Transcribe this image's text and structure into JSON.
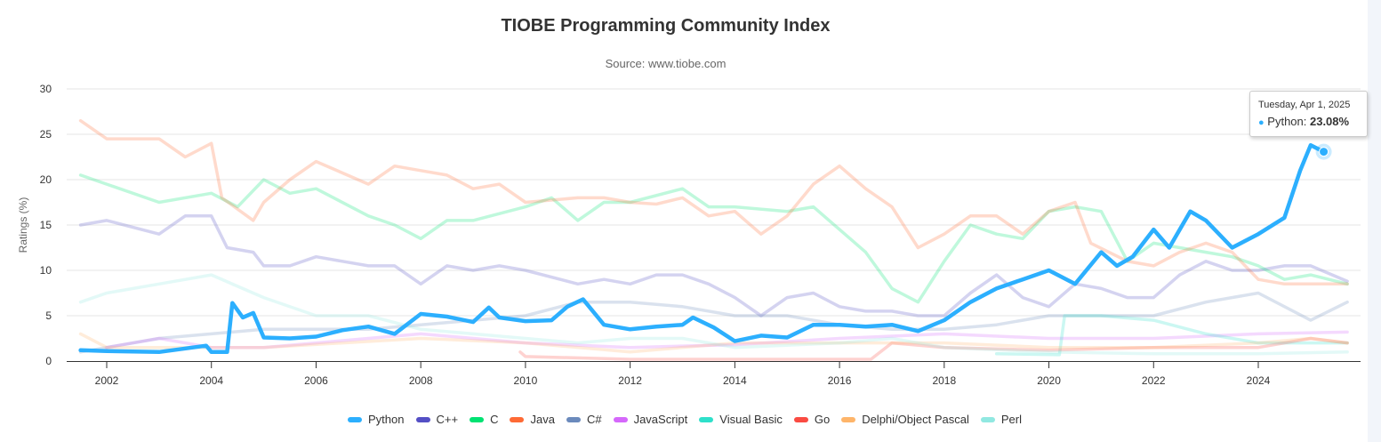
{
  "chart_data": {
    "type": "line",
    "title": "TIOBE Programming Community Index",
    "subtitle": "Source: www.tiobe.com",
    "ylabel": "Ratings (%)",
    "xlabel": "",
    "ylim": [
      0,
      30
    ],
    "xlim": [
      2001.5,
      2025.7
    ],
    "yticks": [
      "0",
      "5",
      "10",
      "15",
      "20",
      "25",
      "30"
    ],
    "xticks": [
      "2002",
      "2004",
      "2006",
      "2008",
      "2010",
      "2012",
      "2014",
      "2016",
      "2018",
      "2020",
      "2022",
      "2024"
    ],
    "grid": "horizontal",
    "legend_position": "bottom",
    "highlighted_series": "Python",
    "series": [
      {
        "name": "Python",
        "color": "#2caffe",
        "points": [
          [
            2001.5,
            1.2
          ],
          [
            2002,
            1.1
          ],
          [
            2003,
            1.0
          ],
          [
            2003.9,
            1.7
          ],
          [
            2004.0,
            1.0
          ],
          [
            2004.3,
            1.0
          ],
          [
            2004.4,
            6.4
          ],
          [
            2004.6,
            4.8
          ],
          [
            2004.8,
            5.3
          ],
          [
            2005,
            2.6
          ],
          [
            2005.5,
            2.5
          ],
          [
            2006,
            2.7
          ],
          [
            2006.5,
            3.4
          ],
          [
            2007,
            3.8
          ],
          [
            2007.5,
            3.0
          ],
          [
            2008,
            5.2
          ],
          [
            2008.5,
            4.9
          ],
          [
            2009,
            4.3
          ],
          [
            2009.3,
            5.9
          ],
          [
            2009.5,
            4.8
          ],
          [
            2010,
            4.4
          ],
          [
            2010.5,
            4.5
          ],
          [
            2010.8,
            6.0
          ],
          [
            2011.1,
            6.8
          ],
          [
            2011.5,
            4.0
          ],
          [
            2012,
            3.5
          ],
          [
            2012.5,
            3.8
          ],
          [
            2013,
            4.0
          ],
          [
            2013.2,
            4.8
          ],
          [
            2013.6,
            3.7
          ],
          [
            2014,
            2.2
          ],
          [
            2014.5,
            2.8
          ],
          [
            2015,
            2.6
          ],
          [
            2015.5,
            4.0
          ],
          [
            2016,
            4.0
          ],
          [
            2016.5,
            3.8
          ],
          [
            2017,
            4.0
          ],
          [
            2017.5,
            3.3
          ],
          [
            2018,
            4.5
          ],
          [
            2018.5,
            6.5
          ],
          [
            2019,
            8.0
          ],
          [
            2019.5,
            9.0
          ],
          [
            2020,
            10.0
          ],
          [
            2020.5,
            8.5
          ],
          [
            2021,
            12
          ],
          [
            2021.3,
            10.5
          ],
          [
            2021.6,
            11.5
          ],
          [
            2022,
            14.5
          ],
          [
            2022.3,
            12.5
          ],
          [
            2022.7,
            16.5
          ],
          [
            2023,
            15.5
          ],
          [
            2023.5,
            12.5
          ],
          [
            2024,
            14
          ],
          [
            2024.5,
            15.8
          ],
          [
            2024.8,
            21
          ],
          [
            2025,
            23.8
          ],
          [
            2025.25,
            23.08
          ]
        ]
      },
      {
        "name": "C++",
        "color": "#544fc5",
        "points": [
          [
            2001.5,
            15
          ],
          [
            2002,
            15.5
          ],
          [
            2003,
            14
          ],
          [
            2003.5,
            16
          ],
          [
            2004,
            16
          ],
          [
            2004.3,
            12.5
          ],
          [
            2004.8,
            12
          ],
          [
            2005,
            10.5
          ],
          [
            2005.5,
            10.5
          ],
          [
            2006,
            11.5
          ],
          [
            2007,
            10.5
          ],
          [
            2007.5,
            10.5
          ],
          [
            2008,
            8.5
          ],
          [
            2008.5,
            10.5
          ],
          [
            2009,
            10
          ],
          [
            2009.5,
            10.5
          ],
          [
            2010,
            10
          ],
          [
            2011,
            8.5
          ],
          [
            2011.5,
            9
          ],
          [
            2012,
            8.5
          ],
          [
            2012.5,
            9.5
          ],
          [
            2013,
            9.5
          ],
          [
            2013.5,
            8.5
          ],
          [
            2014,
            7
          ],
          [
            2014.5,
            5
          ],
          [
            2015,
            7
          ],
          [
            2015.5,
            7.5
          ],
          [
            2016,
            6
          ],
          [
            2016.5,
            5.5
          ],
          [
            2017,
            5.5
          ],
          [
            2017.5,
            5
          ],
          [
            2018,
            5
          ],
          [
            2018.5,
            7.5
          ],
          [
            2019,
            9.5
          ],
          [
            2019.5,
            7
          ],
          [
            2020,
            6
          ],
          [
            2020.5,
            8.5
          ],
          [
            2021,
            8
          ],
          [
            2021.5,
            7
          ],
          [
            2022,
            7
          ],
          [
            2022.5,
            9.5
          ],
          [
            2023,
            11
          ],
          [
            2023.5,
            10
          ],
          [
            2024,
            10
          ],
          [
            2024.5,
            10.5
          ],
          [
            2025,
            10.5
          ],
          [
            2025.7,
            8.8
          ]
        ]
      },
      {
        "name": "C",
        "color": "#00e272",
        "points": [
          [
            2001.5,
            20.5
          ],
          [
            2002,
            19.5
          ],
          [
            2003,
            17.5
          ],
          [
            2004,
            18.5
          ],
          [
            2004.5,
            17
          ],
          [
            2005,
            20
          ],
          [
            2005.5,
            18.5
          ],
          [
            2006,
            19
          ],
          [
            2007,
            16
          ],
          [
            2007.5,
            15
          ],
          [
            2008,
            13.5
          ],
          [
            2008.5,
            15.5
          ],
          [
            2009,
            15.5
          ],
          [
            2010,
            17
          ],
          [
            2010.5,
            18
          ],
          [
            2011,
            15.5
          ],
          [
            2011.5,
            17.5
          ],
          [
            2012,
            17.5
          ],
          [
            2013,
            19
          ],
          [
            2013.5,
            17
          ],
          [
            2014,
            17
          ],
          [
            2015,
            16.5
          ],
          [
            2015.5,
            17
          ],
          [
            2016,
            14.5
          ],
          [
            2016.5,
            12
          ],
          [
            2017,
            8
          ],
          [
            2017.5,
            6.5
          ],
          [
            2018,
            11
          ],
          [
            2018.5,
            15
          ],
          [
            2019,
            14
          ],
          [
            2019.5,
            13.5
          ],
          [
            2020,
            16.5
          ],
          [
            2020.5,
            17
          ],
          [
            2021,
            16.5
          ],
          [
            2021.5,
            11
          ],
          [
            2022,
            13
          ],
          [
            2022.5,
            12.5
          ],
          [
            2023,
            12
          ],
          [
            2023.5,
            11.5
          ],
          [
            2024,
            10.5
          ],
          [
            2024.5,
            9
          ],
          [
            2025,
            9.5
          ],
          [
            2025.7,
            8.5
          ]
        ]
      },
      {
        "name": "Java",
        "color": "#fe6a35",
        "points": [
          [
            2001.5,
            26.5
          ],
          [
            2002,
            24.5
          ],
          [
            2003,
            24.5
          ],
          [
            2003.5,
            22.5
          ],
          [
            2004,
            24
          ],
          [
            2004.2,
            18
          ],
          [
            2004.8,
            15.5
          ],
          [
            2005,
            17.5
          ],
          [
            2005.5,
            20
          ],
          [
            2006,
            22
          ],
          [
            2007,
            19.5
          ],
          [
            2007.5,
            21.5
          ],
          [
            2008,
            21
          ],
          [
            2008.5,
            20.5
          ],
          [
            2009,
            19
          ],
          [
            2009.5,
            19.5
          ],
          [
            2010,
            17.5
          ],
          [
            2011,
            18
          ],
          [
            2011.5,
            18
          ],
          [
            2012,
            17.5
          ],
          [
            2012.5,
            17.3
          ],
          [
            2013,
            18
          ],
          [
            2013.5,
            16
          ],
          [
            2014,
            16.5
          ],
          [
            2014.5,
            14
          ],
          [
            2015,
            16
          ],
          [
            2015.5,
            19.5
          ],
          [
            2016,
            21.5
          ],
          [
            2016.5,
            19
          ],
          [
            2017,
            17
          ],
          [
            2017.5,
            12.5
          ],
          [
            2018,
            14
          ],
          [
            2018.5,
            16
          ],
          [
            2019,
            16
          ],
          [
            2019.5,
            14
          ],
          [
            2020,
            16.5
          ],
          [
            2020.5,
            17.5
          ],
          [
            2020.8,
            13
          ],
          [
            2021.5,
            11
          ],
          [
            2022,
            10.5
          ],
          [
            2022.5,
            12
          ],
          [
            2023,
            13
          ],
          [
            2023.5,
            12
          ],
          [
            2024,
            9
          ],
          [
            2024.5,
            8.5
          ],
          [
            2025,
            8.5
          ],
          [
            2025.7,
            8.5
          ]
        ]
      },
      {
        "name": "C#",
        "color": "#6b8abc",
        "points": [
          [
            2001.5,
            1
          ],
          [
            2002,
            1.5
          ],
          [
            2003,
            2.5
          ],
          [
            2004,
            3
          ],
          [
            2005,
            3.5
          ],
          [
            2006,
            3.5
          ],
          [
            2007,
            3.5
          ],
          [
            2008,
            4
          ],
          [
            2009,
            4.5
          ],
          [
            2010,
            5
          ],
          [
            2011,
            6.5
          ],
          [
            2012,
            6.5
          ],
          [
            2013,
            6
          ],
          [
            2014,
            5
          ],
          [
            2015,
            5
          ],
          [
            2016,
            4
          ],
          [
            2017,
            3.5
          ],
          [
            2018,
            3.5
          ],
          [
            2019,
            4
          ],
          [
            2020,
            5
          ],
          [
            2021,
            5
          ],
          [
            2022,
            5
          ],
          [
            2023,
            6.5
          ],
          [
            2024,
            7.5
          ],
          [
            2025,
            4.5
          ],
          [
            2025.7,
            6.5
          ]
        ]
      },
      {
        "name": "JavaScript",
        "color": "#d568fb",
        "points": [
          [
            2002,
            1.5
          ],
          [
            2003,
            2.5
          ],
          [
            2004,
            1.5
          ],
          [
            2005,
            1.5
          ],
          [
            2006,
            2
          ],
          [
            2008,
            3
          ],
          [
            2010,
            2
          ],
          [
            2012,
            1.5
          ],
          [
            2014,
            1.8
          ],
          [
            2016,
            2.5
          ],
          [
            2018,
            3
          ],
          [
            2020,
            2.5
          ],
          [
            2022,
            2.5
          ],
          [
            2024,
            3
          ],
          [
            2025.7,
            3.2
          ]
        ]
      },
      {
        "name": "Visual Basic",
        "color": "#2ee0ca",
        "points": [
          [
            2019,
            0.8
          ],
          [
            2020.2,
            0.7
          ],
          [
            2020.3,
            5
          ],
          [
            2021,
            5
          ],
          [
            2022,
            4.5
          ],
          [
            2023,
            3
          ],
          [
            2024,
            2
          ],
          [
            2025.7,
            2
          ]
        ]
      },
      {
        "name": "Go",
        "color": "#fa4b42",
        "points": [
          [
            2009.9,
            1.0
          ],
          [
            2010,
            0.5
          ],
          [
            2012,
            0.2
          ],
          [
            2014,
            0.2
          ],
          [
            2016,
            0.2
          ],
          [
            2016.6,
            0.2
          ],
          [
            2017,
            2
          ],
          [
            2018,
            1.5
          ],
          [
            2020,
            1.2
          ],
          [
            2022,
            1.5
          ],
          [
            2024,
            1.5
          ],
          [
            2025,
            2.5
          ],
          [
            2025.7,
            2
          ]
        ]
      },
      {
        "name": "Delphi/Object Pascal",
        "color": "#feb56a",
        "points": [
          [
            2001.5,
            3
          ],
          [
            2002,
            1.5
          ],
          [
            2005,
            1.5
          ],
          [
            2008,
            2.5
          ],
          [
            2010,
            2
          ],
          [
            2012,
            1
          ],
          [
            2014,
            2
          ],
          [
            2016,
            2
          ],
          [
            2018,
            2
          ],
          [
            2020,
            1.5
          ],
          [
            2022,
            1.5
          ],
          [
            2024,
            2
          ],
          [
            2025,
            2.5
          ],
          [
            2025.7,
            2
          ]
        ]
      },
      {
        "name": "Perl",
        "color": "#91e8e1",
        "points": [
          [
            2001.5,
            6.5
          ],
          [
            2002,
            7.5
          ],
          [
            2003,
            8.5
          ],
          [
            2004,
            9.5
          ],
          [
            2005,
            7
          ],
          [
            2006,
            5
          ],
          [
            2007,
            5
          ],
          [
            2008,
            3.5
          ],
          [
            2009,
            3
          ],
          [
            2010,
            2.5
          ],
          [
            2011,
            2
          ],
          [
            2012,
            2.5
          ],
          [
            2013,
            2.5
          ],
          [
            2014,
            1.5
          ],
          [
            2016,
            2
          ],
          [
            2017,
            2.5
          ],
          [
            2018,
            1.5
          ],
          [
            2020,
            1
          ],
          [
            2022,
            0.8
          ],
          [
            2024,
            0.8
          ],
          [
            2025.7,
            1
          ]
        ]
      }
    ],
    "tooltip": {
      "date": "Tuesday, Apr 1, 2025",
      "series": "Python",
      "label": "Python: ",
      "value": "23.08%",
      "x": 2025.25,
      "y": 23.08
    }
  }
}
